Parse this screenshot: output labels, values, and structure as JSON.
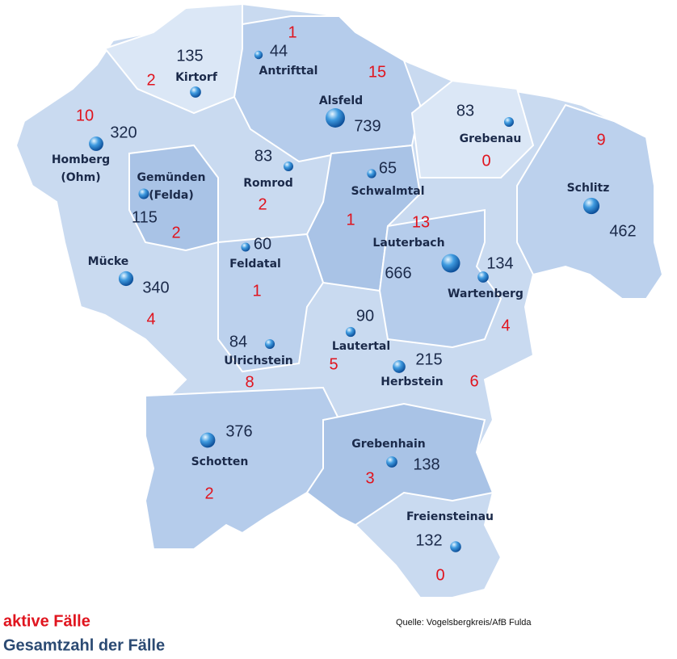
{
  "municipalities": [
    {
      "name": [
        "Antrifttal"
      ],
      "total": 44,
      "active": 1
    },
    {
      "name": [
        "Kirtorf"
      ],
      "total": 135,
      "active": 2
    },
    {
      "name": [
        "Alsfeld"
      ],
      "total": 739,
      "active": 15
    },
    {
      "name": [
        "Grebenau"
      ],
      "total": 83,
      "active": 0
    },
    {
      "name": [
        "Schlitz"
      ],
      "total": 462,
      "active": 9
    },
    {
      "name": [
        "Homberg",
        "(Ohm)"
      ],
      "total": 320,
      "active": 10
    },
    {
      "name": [
        "Gemünden",
        "(Felda)"
      ],
      "total": 115,
      "active": 2
    },
    {
      "name": [
        "Romrod"
      ],
      "total": 83,
      "active": 2
    },
    {
      "name": [
        "Schwalmtal"
      ],
      "total": 65,
      "active": 1
    },
    {
      "name": [
        "Lauterbach"
      ],
      "total": 666,
      "active": 13
    },
    {
      "name": [
        "Wartenberg"
      ],
      "total": 134,
      "active": 4
    },
    {
      "name": [
        "Mücke"
      ],
      "total": 340,
      "active": 4
    },
    {
      "name": [
        "Feldatal"
      ],
      "total": 60,
      "active": 1
    },
    {
      "name": [
        "Lautertal"
      ],
      "total": 90,
      "active": 5
    },
    {
      "name": [
        "Ulrichstein"
      ],
      "total": 84,
      "active": 8
    },
    {
      "name": [
        "Herbstein"
      ],
      "total": 215,
      "active": 6
    },
    {
      "name": [
        "Schotten"
      ],
      "total": 376,
      "active": 2
    },
    {
      "name": [
        "Grebenhain"
      ],
      "total": 138,
      "active": 3
    },
    {
      "name": [
        "Freiensteinau"
      ],
      "total": 132,
      "active": 0
    }
  ],
  "legend": {
    "active": "aktive Fälle",
    "total": "Gesamtzahl der Fälle"
  },
  "source": "Quelle: Vogelsbergkreis/AfB Fulda"
}
